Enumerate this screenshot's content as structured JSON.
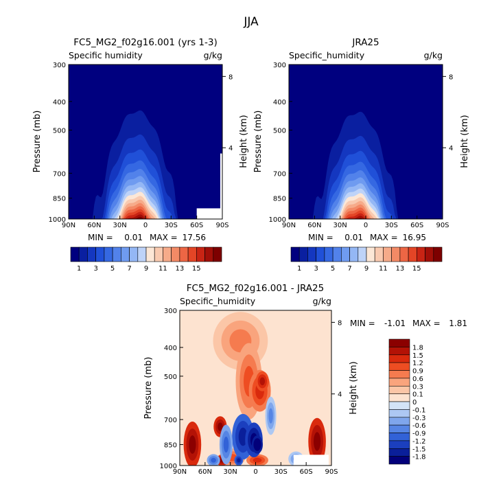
{
  "page_title": "JJA",
  "chart_data": [
    {
      "type": "heatmap",
      "title": "FC5_MG2_f02g16.001 (yrs 1-3)",
      "variable": "Specific humidity",
      "units": "g/kg",
      "xlabel": "",
      "ylabel": "Pressure (mb)",
      "ylabel_right": "Height (km)",
      "xticks": [
        "90N",
        "60N",
        "30N",
        "0",
        "30S",
        "60S",
        "90S"
      ],
      "yticks": [
        "300",
        "400",
        "500",
        "700",
        "850",
        "1000"
      ],
      "yticks_right": [
        "8",
        "4"
      ],
      "ylim": [
        1000,
        300
      ],
      "min_label": "MIN =",
      "min_value": "0.01",
      "max_label": "MAX =",
      "max_value": "17.56",
      "peak_humidity": 17.56,
      "colorbar_labels": [
        "1",
        "3",
        "5",
        "7",
        "9",
        "11",
        "13",
        "15"
      ]
    },
    {
      "type": "heatmap",
      "title": "JRA25",
      "variable": "Specific_humidity",
      "units": "g/kg",
      "xlabel": "",
      "ylabel": "Pressure (mb)",
      "ylabel_right": "Height (km)",
      "xticks": [
        "90N",
        "60N",
        "30N",
        "0",
        "30S",
        "60S",
        "90S"
      ],
      "yticks": [
        "300",
        "400",
        "500",
        "700",
        "850",
        "1000"
      ],
      "yticks_right": [
        "8",
        "4"
      ],
      "ylim": [
        1000,
        300
      ],
      "min_label": "MIN =",
      "min_value": "0.01",
      "max_label": "MAX =",
      "max_value": "16.95",
      "peak_humidity": 16.95,
      "colorbar_labels": [
        "1",
        "3",
        "5",
        "7",
        "9",
        "11",
        "13",
        "15"
      ]
    },
    {
      "type": "heatmap",
      "title": "FC5_MG2_f02g16.001 - JRA25",
      "variable": "Specific_humidity",
      "units": "g/kg",
      "xlabel": "",
      "ylabel": "Pressure (mb)",
      "ylabel_right": "Height (km)",
      "xticks": [
        "90N",
        "60N",
        "30N",
        "0",
        "30S",
        "60S",
        "90S"
      ],
      "yticks": [
        "300",
        "400",
        "500",
        "700",
        "850",
        "1000"
      ],
      "yticks_right": [
        "8",
        "4"
      ],
      "ylim": [
        1000,
        300
      ],
      "min_label": "MIN =",
      "min_value": "-1.01",
      "max_label": "MAX =",
      "max_value": "1.81",
      "colorbar_labels": [
        "1.8",
        "1.5",
        "1.2",
        "0.9",
        "0.6",
        "0.3",
        "0.1",
        "0",
        "-0.1",
        "-0.3",
        "-0.6",
        "-0.9",
        "-1.2",
        "-1.5",
        "-1.8"
      ]
    }
  ],
  "colors": {
    "sequential": [
      "#00007f",
      "#0a1fa0",
      "#1437c0",
      "#2050d8",
      "#3568e2",
      "#5282ea",
      "#6f9bf0",
      "#94b7f5",
      "#bed3f8",
      "#fce7d6",
      "#f9cab0",
      "#f6ab8a",
      "#f38a66",
      "#ed6644",
      "#e34526",
      "#c82414",
      "#a10f08",
      "#7d0000"
    ],
    "diverging_top_to_bottom": [
      "#8b0000",
      "#b31206",
      "#d92a0d",
      "#ee4d22",
      "#f57b4f",
      "#f9a47d",
      "#fbc6a7",
      "#fde3d0",
      "#d3e3f7",
      "#adc8f3",
      "#7fa6ec",
      "#5685e4",
      "#3262d7",
      "#1b3fbe",
      "#0a1f9a",
      "#02007a"
    ]
  }
}
